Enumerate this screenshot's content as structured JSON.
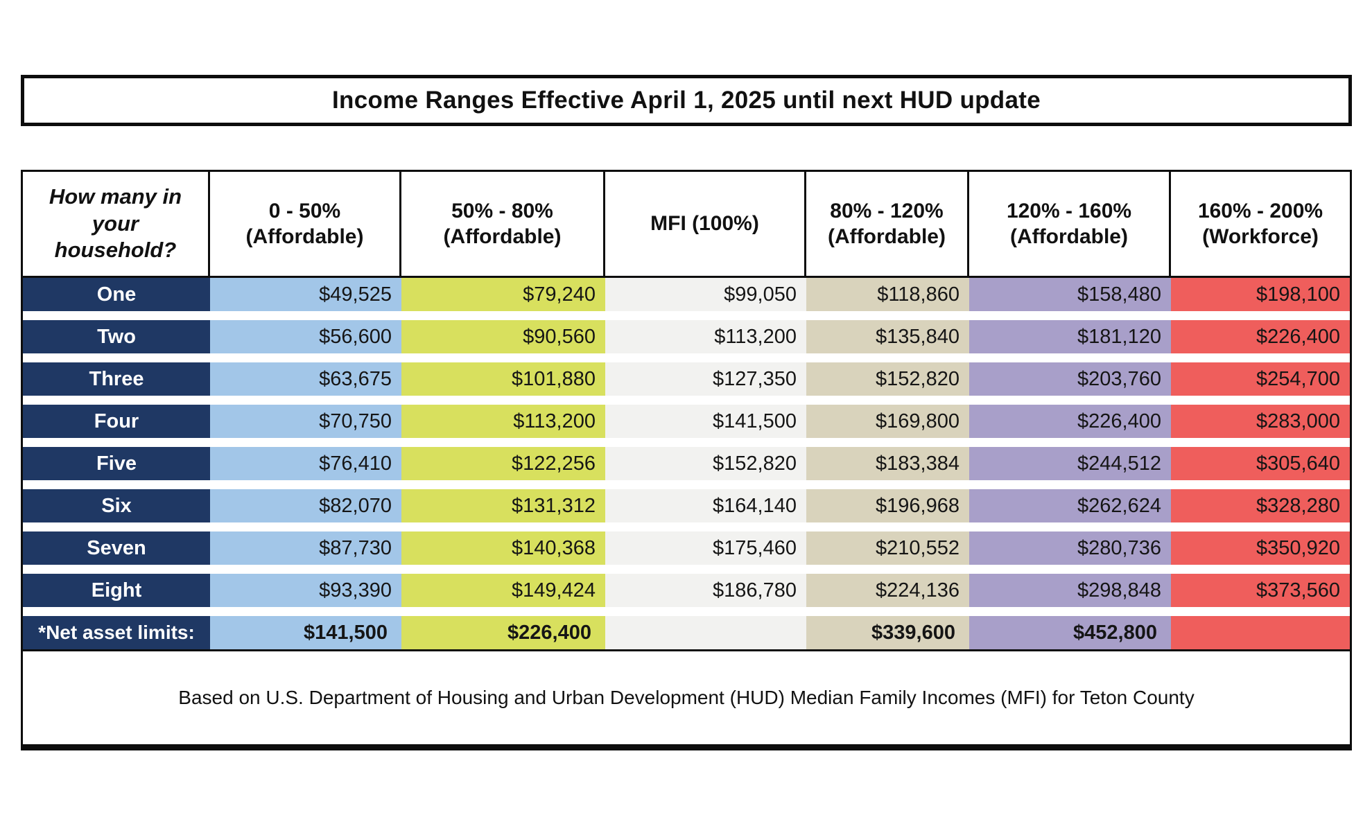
{
  "title": "Income Ranges Effective April 1, 2025 until next HUD update",
  "table": {
    "row_header_label": "How many in\nyour\nhousehold?",
    "colors": {
      "row_label_bg": "#1F3864",
      "header_bg": "#FFFFFF",
      "border": "#0D0D0D"
    },
    "columns": [
      {
        "label": "0 - 50%\n(Affordable)",
        "color": "#A2C6E8"
      },
      {
        "label": "50% - 80%\n(Affordable)",
        "color": "#D8E05E"
      },
      {
        "label": "MFI (100%)",
        "color": "#F2F2F0"
      },
      {
        "label": "80% - 120%\n(Affordable)",
        "color": "#D9D3BC"
      },
      {
        "label": "120% - 160%\n(Affordable)",
        "color": "#A89FC9"
      },
      {
        "label": "160% - 200%\n(Workforce)",
        "color": "#EF5E5C"
      }
    ],
    "rows": [
      {
        "label": "One",
        "values": [
          "$49,525",
          "$79,240",
          "$99,050",
          "$118,860",
          "$158,480",
          "$198,100"
        ]
      },
      {
        "label": "Two",
        "values": [
          "$56,600",
          "$90,560",
          "$113,200",
          "$135,840",
          "$181,120",
          "$226,400"
        ]
      },
      {
        "label": "Three",
        "values": [
          "$63,675",
          "$101,880",
          "$127,350",
          "$152,820",
          "$203,760",
          "$254,700"
        ]
      },
      {
        "label": "Four",
        "values": [
          "$70,750",
          "$113,200",
          "$141,500",
          "$169,800",
          "$226,400",
          "$283,000"
        ]
      },
      {
        "label": "Five",
        "values": [
          "$76,410",
          "$122,256",
          "$152,820",
          "$183,384",
          "$244,512",
          "$305,640"
        ]
      },
      {
        "label": "Six",
        "values": [
          "$82,070",
          "$131,312",
          "$164,140",
          "$196,968",
          "$262,624",
          "$328,280"
        ]
      },
      {
        "label": "Seven",
        "values": [
          "$87,730",
          "$140,368",
          "$175,460",
          "$210,552",
          "$280,736",
          "$350,920"
        ]
      },
      {
        "label": "Eight",
        "values": [
          "$93,390",
          "$149,424",
          "$186,780",
          "$224,136",
          "$298,848",
          "$373,560"
        ]
      }
    ],
    "net_asset_row": {
      "label": "*Net asset limits:",
      "values": [
        "$141,500",
        "$226,400",
        "",
        "$339,600",
        "$452,800",
        ""
      ]
    }
  },
  "footer_note": "Based on U.S. Department of Housing and Urban Development (HUD) Median Family Incomes (MFI) for Teton County"
}
